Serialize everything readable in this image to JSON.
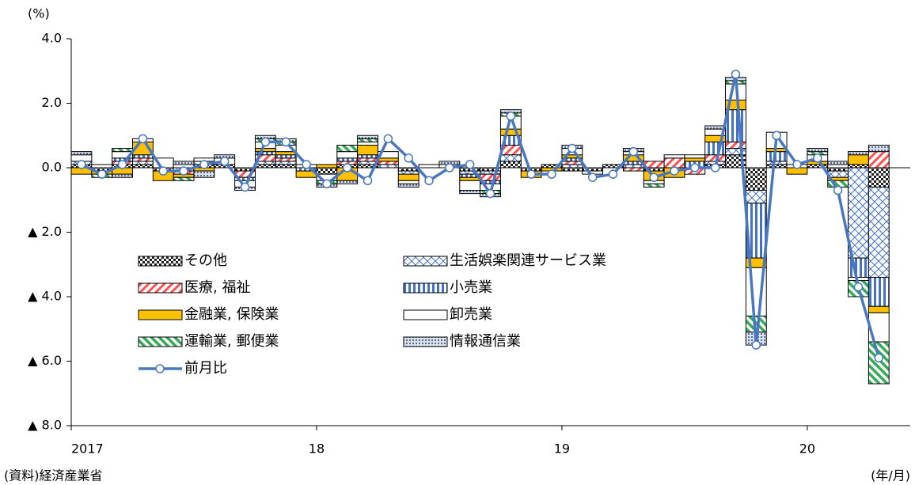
{
  "chart_data": {
    "type": "stacked-bar-line",
    "y_label": "(%)",
    "x_label": "(年/月)",
    "source": "(資料)経済産業省",
    "categories": [
      "2017",
      null,
      null,
      null,
      null,
      null,
      null,
      null,
      null,
      null,
      null,
      null,
      "18",
      null,
      null,
      null,
      null,
      null,
      null,
      null,
      null,
      null,
      null,
      null,
      "19",
      null,
      null,
      null,
      null,
      null,
      null,
      null,
      null,
      null,
      null,
      null,
      "20",
      null,
      null,
      null
    ],
    "ylim": [
      -8,
      4
    ],
    "yticks": [
      {
        "value": 4,
        "label": "4.0"
      },
      {
        "value": 2,
        "label": "2.0"
      },
      {
        "value": 0,
        "label": "0.0"
      },
      {
        "value": -2,
        "label": "▲ 2.0"
      },
      {
        "value": -4,
        "label": "▲ 4.0"
      },
      {
        "value": -6,
        "label": "▲ 6.0"
      },
      {
        "value": -8,
        "label": "▲ 8.0"
      }
    ],
    "series": [
      {
        "name": "その他",
        "color": "#333333",
        "pattern": "checker",
        "values": [
          0.1,
          -0.1,
          0.1,
          0.1,
          -0.1,
          0.0,
          0.1,
          0.1,
          -0.1,
          0.1,
          0.1,
          0.0,
          -0.2,
          0.1,
          0.1,
          0.0,
          -0.1,
          0.0,
          0.0,
          -0.1,
          -0.1,
          0.2,
          -0.1,
          0.1,
          -0.1,
          -0.1,
          0.1,
          0.0,
          -0.1,
          0.0,
          0.0,
          0.1,
          0.4,
          -0.7,
          0.1,
          0.0,
          0.1,
          -0.1,
          0.1,
          -0.6
        ]
      },
      {
        "name": "生活娯楽関連サービス業",
        "color": "#4472c4",
        "pattern": "cross",
        "values": [
          0.1,
          0.0,
          0.0,
          0.1,
          0.0,
          -0.1,
          0.1,
          0.0,
          0.0,
          0.1,
          0.1,
          0.0,
          0.0,
          0.0,
          0.1,
          0.1,
          -0.1,
          0.0,
          0.0,
          -0.1,
          -0.1,
          0.2,
          0.0,
          0.0,
          0.1,
          0.0,
          0.0,
          0.1,
          0.0,
          0.0,
          0.0,
          0.1,
          0.2,
          -0.4,
          0.1,
          0.0,
          0.0,
          -0.2,
          -2.8,
          -2.8
        ]
      },
      {
        "name": "医療, 福祉",
        "color": "#ff5050",
        "pattern": "redstripe",
        "values": [
          0.0,
          0.0,
          0.1,
          0.1,
          0.0,
          -0.1,
          0.0,
          0.0,
          -0.2,
          0.2,
          0.1,
          0.0,
          0.0,
          0.1,
          0.1,
          0.1,
          0.0,
          0.0,
          0.0,
          0.0,
          -0.2,
          0.3,
          0.0,
          0.0,
          0.1,
          0.0,
          0.0,
          -0.1,
          0.2,
          0.3,
          -0.2,
          0.2,
          0.2,
          0.0,
          0.0,
          0.0,
          0.0,
          0.0,
          0.0,
          0.5
        ]
      },
      {
        "name": "小売業",
        "color": "#4472c4",
        "pattern": "vstripe",
        "values": [
          0.0,
          0.0,
          0.1,
          0.1,
          0.0,
          0.0,
          0.0,
          0.0,
          -0.1,
          0.1,
          0.1,
          -0.1,
          0.0,
          0.1,
          0.1,
          0.0,
          0.0,
          0.0,
          0.0,
          -0.1,
          -0.1,
          0.3,
          0.0,
          0.0,
          0.1,
          0.0,
          0.0,
          0.1,
          0.0,
          0.0,
          0.2,
          0.4,
          1.0,
          -1.7,
          0.3,
          0.0,
          0.0,
          0.0,
          -0.6,
          -0.9
        ]
      },
      {
        "name": "金融業, 保険業",
        "color": "#ffc000",
        "values": [
          -0.2,
          -0.1,
          -0.2,
          0.4,
          -0.3,
          -0.1,
          -0.1,
          0.0,
          0.0,
          0.1,
          0.1,
          -0.2,
          0.1,
          -0.4,
          0.3,
          0.1,
          -0.2,
          0.0,
          0.0,
          -0.1,
          0.0,
          0.2,
          -0.2,
          -0.1,
          0.1,
          0.0,
          0.0,
          0.2,
          -0.3,
          -0.3,
          0.1,
          0.2,
          0.3,
          -0.3,
          0.1,
          -0.2,
          0.1,
          -0.1,
          0.3,
          -0.2
        ]
      },
      {
        "name": "卸売業",
        "color": "#ffffff",
        "values": [
          0.2,
          0.1,
          0.2,
          0.1,
          0.3,
          0.1,
          0.1,
          0.2,
          -0.2,
          0.2,
          0.2,
          0.1,
          -0.2,
          0.2,
          0.1,
          0.2,
          -0.1,
          0.1,
          0.1,
          -0.3,
          -0.2,
          0.4,
          0.0,
          0.0,
          0.2,
          -0.1,
          0.0,
          0.1,
          -0.1,
          0.1,
          0.1,
          0.2,
          0.5,
          -1.5,
          0.5,
          0.1,
          0.2,
          0.1,
          -0.1,
          -0.9
        ]
      },
      {
        "name": "運輸業, 郵便業",
        "color": "#33aa55",
        "pattern": "greenstripe",
        "values": [
          0.0,
          -0.1,
          0.1,
          0.0,
          0.0,
          -0.1,
          0.0,
          0.0,
          0.0,
          0.1,
          0.1,
          0.0,
          -0.1,
          0.2,
          0.1,
          0.0,
          0.0,
          0.0,
          0.0,
          0.0,
          -0.1,
          0.1,
          0.0,
          0.0,
          0.0,
          0.0,
          0.0,
          0.0,
          -0.1,
          0.0,
          0.0,
          0.0,
          0.1,
          -0.5,
          0.0,
          0.0,
          0.1,
          -0.2,
          -0.5,
          -1.3
        ]
      },
      {
        "name": "情報通信業",
        "color": "#8497b0",
        "pattern": "dots",
        "values": [
          0.1,
          0.0,
          -0.1,
          0.0,
          0.0,
          0.1,
          -0.2,
          0.1,
          -0.1,
          0.1,
          0.1,
          0.0,
          -0.1,
          -0.1,
          0.1,
          0.0,
          -0.1,
          0.0,
          0.1,
          -0.1,
          -0.1,
          0.1,
          0.0,
          0.0,
          0.1,
          0.0,
          0.0,
          0.1,
          0.0,
          0.0,
          0.0,
          0.1,
          0.1,
          -0.4,
          0.0,
          0.0,
          0.1,
          0.1,
          0.1,
          0.2
        ]
      },
      {
        "name": "前月比",
        "color": "#4a78c0",
        "kind": "line",
        "values": [
          0.1,
          -0.2,
          0.1,
          0.9,
          -0.1,
          -0.1,
          0.1,
          0.2,
          -0.6,
          0.8,
          0.8,
          0.1,
          -0.5,
          0.0,
          -0.4,
          0.9,
          0.3,
          -0.4,
          0.0,
          0.1,
          -0.8,
          1.6,
          -0.2,
          -0.2,
          0.6,
          -0.3,
          -0.2,
          0.5,
          -0.3,
          -0.1,
          0.0,
          0.0,
          2.9,
          -5.5,
          1.0,
          0.1,
          0.3,
          -0.7,
          -3.7,
          -5.9
        ]
      }
    ]
  }
}
